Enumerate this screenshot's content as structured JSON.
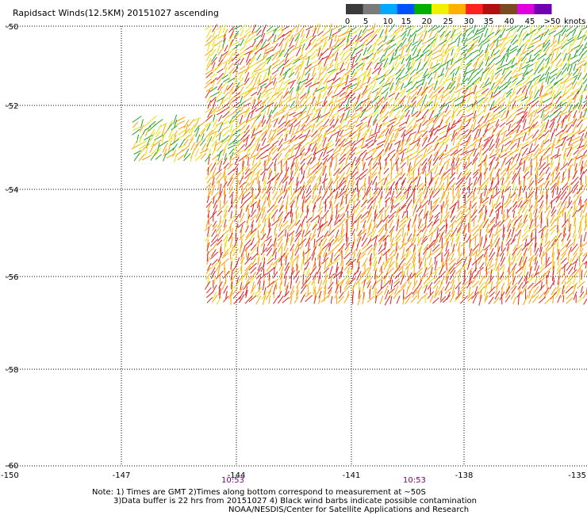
{
  "title": "Rapidsact Winds(12.5KM) 20151027 ascending",
  "colorbar": {
    "units": "knots",
    "ticks": [
      "0",
      "5",
      "10",
      "15",
      "20",
      "25",
      "30",
      "35",
      "40",
      "45",
      ">50"
    ],
    "colors": [
      "#3a3a3a",
      "#7a7a7a",
      "#00a8ff",
      "#0050ff",
      "#00b000",
      "#f0f000",
      "#ffb000",
      "#ff2020",
      "#b01010",
      "#7a4a20",
      "#e000e0",
      "#7000b0"
    ]
  },
  "axes": {
    "x_ticks": [
      "-150",
      "-147",
      "-144",
      "-141",
      "-138",
      "-135"
    ],
    "y_ticks": [
      "-50",
      "-52",
      "-54",
      "-56",
      "-58",
      "-60"
    ],
    "x_range": [
      -150,
      -135
    ],
    "y_range": [
      -60,
      -50
    ]
  },
  "times": [
    "10:53",
    "10:53"
  ],
  "notes": [
    "Note: 1) Times are GMT 2)Times along bottom correspond to measurement at ~50S",
    "3)Data buffer is 22 hrs from 20151027 4) Black wind barbs indicate possible contamination",
    "NOAA/NESDIS/Center for Satellite Applications and Research"
  ],
  "colors": {
    "time_label": "#7a007a",
    "barb_strong": "#e02020",
    "barb_moderate": "#ffa000",
    "barb_light": "#e8e000",
    "barb_weak": "#20a020"
  }
}
